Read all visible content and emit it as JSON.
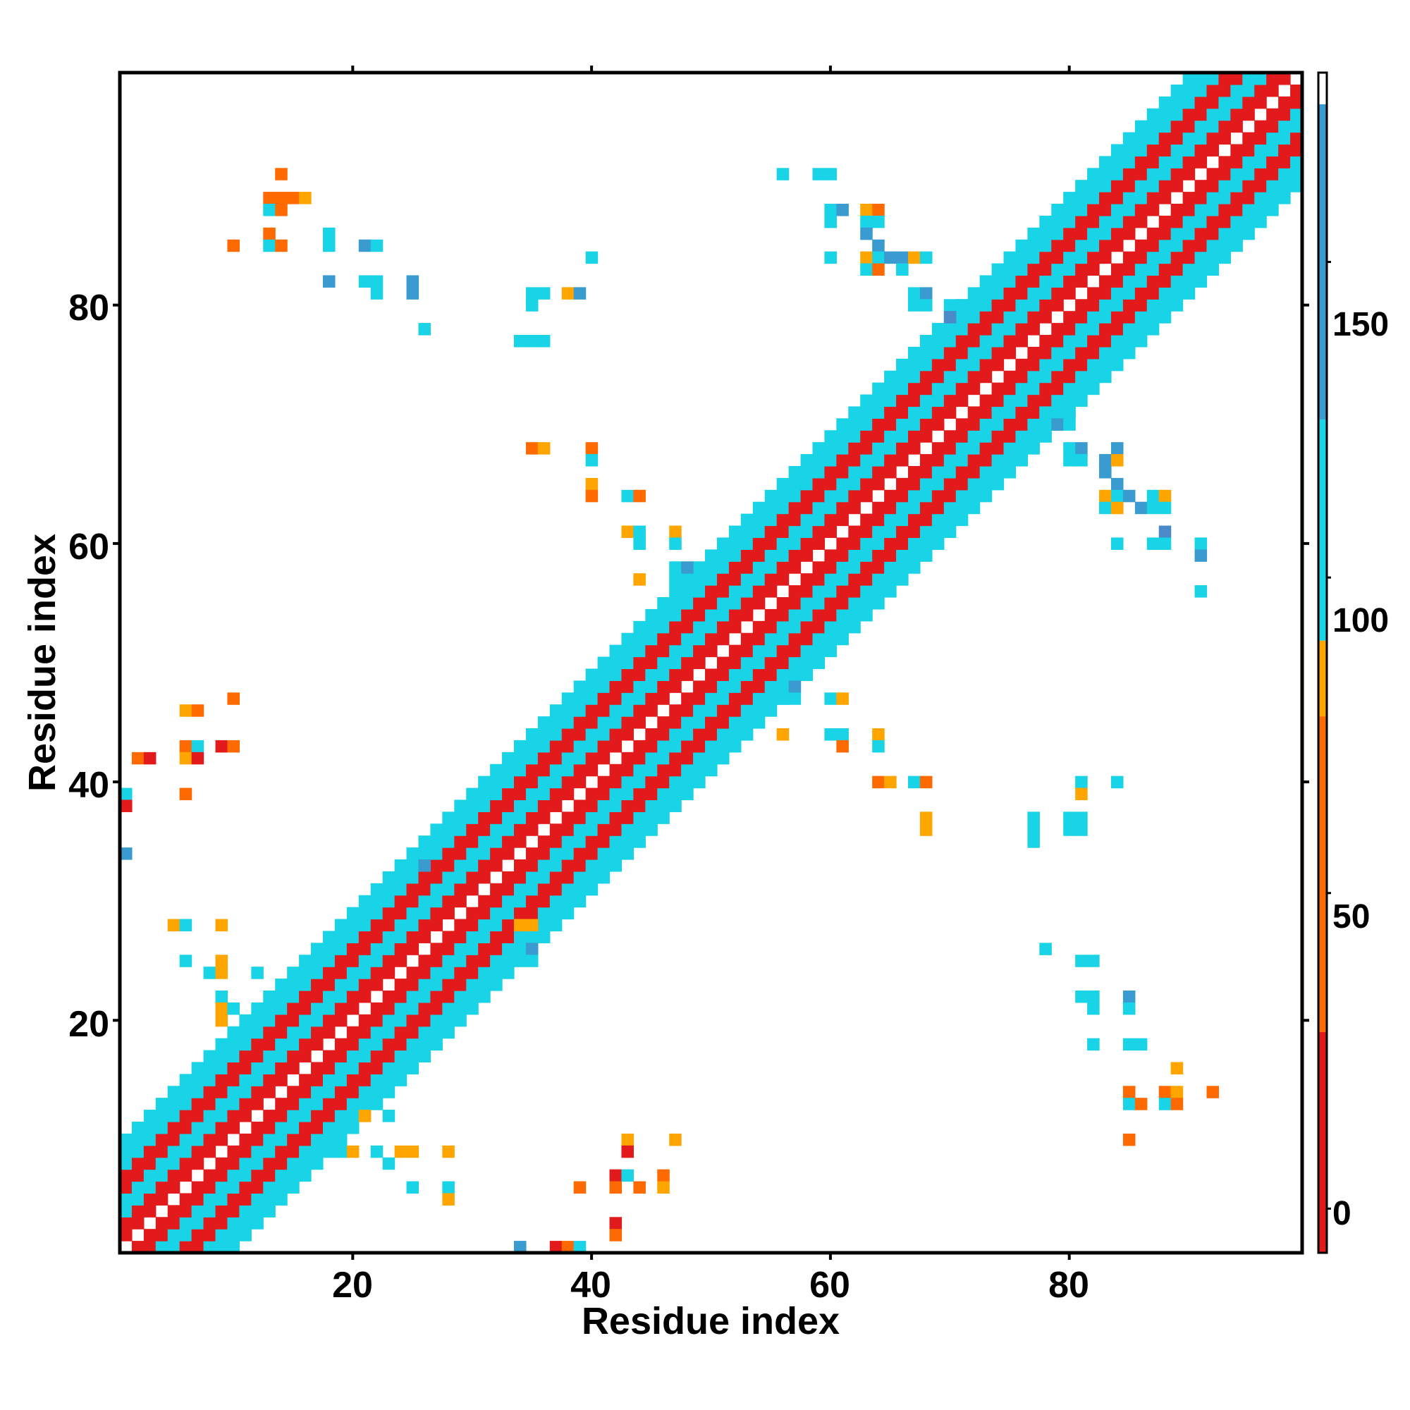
{
  "chart_data": {
    "type": "heatmap",
    "title": "",
    "xlabel": "Residue index",
    "ylabel": "Residue index",
    "xlim": [
      0.5,
      99.5
    ],
    "ylim": [
      0.5,
      99.5
    ],
    "x_ticks": [
      20,
      40,
      60,
      80
    ],
    "y_ticks": [
      20,
      40,
      60,
      80
    ],
    "x_tick_labels": [
      "20",
      "40",
      "60",
      "80"
    ],
    "y_tick_labels": [
      "20",
      "40",
      "60",
      "80"
    ],
    "colorbar": {
      "range": [
        -7,
        180
      ],
      "ticks": [
        0,
        50,
        100,
        150
      ],
      "tick_labels": [
        "0",
        "50",
        "100",
        "150"
      ],
      "bands": [
        {
          "from": -7,
          "to": 28,
          "color": "#e31a1c",
          "meaning": "red"
        },
        {
          "from": 28,
          "to": 78,
          "color": "#ff6a00",
          "meaning": "orange"
        },
        {
          "from": 78,
          "to": 90,
          "color": "#ffa500",
          "meaning": "amber"
        },
        {
          "from": 90,
          "to": 125,
          "color": "#19d3e6",
          "meaning": "cyan"
        },
        {
          "from": 125,
          "to": 175,
          "color": "#3a9bd0",
          "meaning": "blue"
        },
        {
          "from": 175,
          "to": 180,
          "color": "#ffffff",
          "meaning": "white"
        }
      ]
    },
    "colors": {
      "red": "#e31a1c",
      "orange": "#ff6a00",
      "amber": "#ffa500",
      "cyan": "#19d3e6",
      "blue": "#3a9bd0",
      "steel": "#4a8ac8"
    },
    "diagonal_band": {
      "residue_range": [
        1,
        99
      ],
      "halfwidth": 9,
      "pattern_cycle": [
        "cyan",
        "orange",
        "red",
        "orange"
      ]
    },
    "contacts": [
      {
        "x": 14,
        "y": 91,
        "c": "orange"
      },
      {
        "x": 13,
        "y": 89,
        "c": "orange"
      },
      {
        "x": 14,
        "y": 89,
        "c": "orange"
      },
      {
        "x": 15,
        "y": 89,
        "c": "orange"
      },
      {
        "x": 16,
        "y": 89,
        "c": "amber"
      },
      {
        "x": 13,
        "y": 88,
        "c": "cyan"
      },
      {
        "x": 14,
        "y": 88,
        "c": "orange"
      },
      {
        "x": 10,
        "y": 85,
        "c": "orange"
      },
      {
        "x": 13,
        "y": 86,
        "c": "orange"
      },
      {
        "x": 13,
        "y": 85,
        "c": "cyan"
      },
      {
        "x": 14,
        "y": 85,
        "c": "orange"
      },
      {
        "x": 18,
        "y": 86,
        "c": "cyan"
      },
      {
        "x": 18,
        "y": 85,
        "c": "cyan"
      },
      {
        "x": 21,
        "y": 85,
        "c": "blue"
      },
      {
        "x": 22,
        "y": 85,
        "c": "cyan"
      },
      {
        "x": 18,
        "y": 82,
        "c": "blue"
      },
      {
        "x": 21,
        "y": 82,
        "c": "cyan"
      },
      {
        "x": 22,
        "y": 82,
        "c": "cyan"
      },
      {
        "x": 22,
        "y": 81,
        "c": "cyan"
      },
      {
        "x": 25,
        "y": 82,
        "c": "blue"
      },
      {
        "x": 25,
        "y": 81,
        "c": "blue"
      },
      {
        "x": 26,
        "y": 78,
        "c": "cyan"
      },
      {
        "x": 35,
        "y": 81,
        "c": "cyan"
      },
      {
        "x": 36,
        "y": 81,
        "c": "cyan"
      },
      {
        "x": 35,
        "y": 80,
        "c": "cyan"
      },
      {
        "x": 38,
        "y": 81,
        "c": "amber"
      },
      {
        "x": 39,
        "y": 81,
        "c": "blue"
      },
      {
        "x": 40,
        "y": 84,
        "c": "cyan"
      },
      {
        "x": 34,
        "y": 77,
        "c": "cyan"
      },
      {
        "x": 35,
        "y": 77,
        "c": "cyan"
      },
      {
        "x": 36,
        "y": 77,
        "c": "cyan"
      },
      {
        "x": 35,
        "y": 68,
        "c": "orange"
      },
      {
        "x": 36,
        "y": 68,
        "c": "amber"
      },
      {
        "x": 40,
        "y": 68,
        "c": "orange"
      },
      {
        "x": 40,
        "y": 67,
        "c": "cyan"
      },
      {
        "x": 40,
        "y": 65,
        "c": "amber"
      },
      {
        "x": 40,
        "y": 64,
        "c": "orange"
      },
      {
        "x": 43,
        "y": 64,
        "c": "cyan"
      },
      {
        "x": 44,
        "y": 64,
        "c": "orange"
      },
      {
        "x": 43,
        "y": 61,
        "c": "amber"
      },
      {
        "x": 44,
        "y": 61,
        "c": "cyan"
      },
      {
        "x": 44,
        "y": 60,
        "c": "cyan"
      },
      {
        "x": 47,
        "y": 61,
        "c": "amber"
      },
      {
        "x": 47,
        "y": 60,
        "c": "cyan"
      },
      {
        "x": 44,
        "y": 57,
        "c": "amber"
      },
      {
        "x": 47,
        "y": 58,
        "c": "cyan"
      },
      {
        "x": 47,
        "y": 57,
        "c": "cyan"
      },
      {
        "x": 48,
        "y": 58,
        "c": "blue"
      },
      {
        "x": 56,
        "y": 91,
        "c": "cyan"
      },
      {
        "x": 59,
        "y": 91,
        "c": "cyan"
      },
      {
        "x": 60,
        "y": 91,
        "c": "cyan"
      },
      {
        "x": 60,
        "y": 88,
        "c": "cyan"
      },
      {
        "x": 61,
        "y": 88,
        "c": "blue"
      },
      {
        "x": 60,
        "y": 87,
        "c": "cyan"
      },
      {
        "x": 63,
        "y": 88,
        "c": "amber"
      },
      {
        "x": 64,
        "y": 88,
        "c": "orange"
      },
      {
        "x": 63,
        "y": 87,
        "c": "cyan"
      },
      {
        "x": 64,
        "y": 87,
        "c": "cyan"
      },
      {
        "x": 63,
        "y": 86,
        "c": "blue"
      },
      {
        "x": 64,
        "y": 85,
        "c": "blue"
      },
      {
        "x": 60,
        "y": 84,
        "c": "cyan"
      },
      {
        "x": 63,
        "y": 84,
        "c": "amber"
      },
      {
        "x": 64,
        "y": 84,
        "c": "cyan"
      },
      {
        "x": 65,
        "y": 84,
        "c": "blue"
      },
      {
        "x": 66,
        "y": 84,
        "c": "blue"
      },
      {
        "x": 67,
        "y": 84,
        "c": "amber"
      },
      {
        "x": 68,
        "y": 84,
        "c": "cyan"
      },
      {
        "x": 63,
        "y": 83,
        "c": "cyan"
      },
      {
        "x": 64,
        "y": 83,
        "c": "orange"
      },
      {
        "x": 66,
        "y": 83,
        "c": "cyan"
      },
      {
        "x": 67,
        "y": 81,
        "c": "cyan"
      },
      {
        "x": 68,
        "y": 81,
        "c": "blue"
      },
      {
        "x": 67,
        "y": 80,
        "c": "cyan"
      },
      {
        "x": 68,
        "y": 80,
        "c": "cyan"
      },
      {
        "x": 70,
        "y": 80,
        "c": "cyan"
      },
      {
        "x": 71,
        "y": 80,
        "c": "cyan"
      },
      {
        "x": 70,
        "y": 79,
        "c": "steel"
      },
      {
        "x": 78,
        "y": 71,
        "c": "cyan"
      },
      {
        "x": 79,
        "y": 71,
        "c": "cyan"
      },
      {
        "x": 80,
        "y": 71,
        "c": "cyan"
      },
      {
        "x": 79,
        "y": 70,
        "c": "blue"
      },
      {
        "x": 80,
        "y": 70,
        "c": "cyan"
      },
      {
        "x": 80,
        "y": 68,
        "c": "cyan"
      },
      {
        "x": 81,
        "y": 68,
        "c": "blue"
      },
      {
        "x": 80,
        "y": 67,
        "c": "cyan"
      },
      {
        "x": 81,
        "y": 67,
        "c": "cyan"
      },
      {
        "x": 84,
        "y": 68,
        "c": "blue"
      },
      {
        "x": 83,
        "y": 67,
        "c": "blue"
      },
      {
        "x": 84,
        "y": 67,
        "c": "amber"
      },
      {
        "x": 83,
        "y": 66,
        "c": "blue"
      },
      {
        "x": 84,
        "y": 65,
        "c": "blue"
      },
      {
        "x": 83,
        "y": 64,
        "c": "amber"
      },
      {
        "x": 84,
        "y": 64,
        "c": "cyan"
      },
      {
        "x": 85,
        "y": 64,
        "c": "blue"
      },
      {
        "x": 83,
        "y": 63,
        "c": "cyan"
      },
      {
        "x": 84,
        "y": 63,
        "c": "amber"
      },
      {
        "x": 86,
        "y": 63,
        "c": "blue"
      },
      {
        "x": 87,
        "y": 64,
        "c": "cyan"
      },
      {
        "x": 88,
        "y": 64,
        "c": "amber"
      },
      {
        "x": 87,
        "y": 63,
        "c": "cyan"
      },
      {
        "x": 88,
        "y": 63,
        "c": "cyan"
      },
      {
        "x": 88,
        "y": 61,
        "c": "steel"
      },
      {
        "x": 84,
        "y": 60,
        "c": "cyan"
      },
      {
        "x": 87,
        "y": 60,
        "c": "cyan"
      },
      {
        "x": 88,
        "y": 60,
        "c": "cyan"
      },
      {
        "x": 91,
        "y": 60,
        "c": "cyan"
      },
      {
        "x": 91,
        "y": 59,
        "c": "blue"
      },
      {
        "x": 91,
        "y": 56,
        "c": "cyan"
      },
      {
        "x": 1,
        "y": 39,
        "c": "cyan"
      },
      {
        "x": 1,
        "y": 38,
        "c": "red"
      },
      {
        "x": 1,
        "y": 34,
        "c": "blue"
      },
      {
        "x": 2,
        "y": 42,
        "c": "orange"
      },
      {
        "x": 3,
        "y": 42,
        "c": "red"
      },
      {
        "x": 6,
        "y": 46,
        "c": "amber"
      },
      {
        "x": 7,
        "y": 46,
        "c": "orange"
      },
      {
        "x": 10,
        "y": 47,
        "c": "orange"
      },
      {
        "x": 6,
        "y": 43,
        "c": "orange"
      },
      {
        "x": 7,
        "y": 43,
        "c": "cyan"
      },
      {
        "x": 9,
        "y": 43,
        "c": "red"
      },
      {
        "x": 10,
        "y": 43,
        "c": "orange"
      },
      {
        "x": 6,
        "y": 42,
        "c": "amber"
      },
      {
        "x": 7,
        "y": 42,
        "c": "red"
      },
      {
        "x": 6,
        "y": 39,
        "c": "orange"
      },
      {
        "x": 5,
        "y": 28,
        "c": "amber"
      },
      {
        "x": 6,
        "y": 28,
        "c": "cyan"
      },
      {
        "x": 9,
        "y": 28,
        "c": "amber"
      },
      {
        "x": 6,
        "y": 25,
        "c": "cyan"
      },
      {
        "x": 8,
        "y": 24,
        "c": "cyan"
      },
      {
        "x": 9,
        "y": 25,
        "c": "amber"
      },
      {
        "x": 9,
        "y": 24,
        "c": "amber"
      },
      {
        "x": 12,
        "y": 24,
        "c": "cyan"
      },
      {
        "x": 9,
        "y": 22,
        "c": "cyan"
      },
      {
        "x": 9,
        "y": 21,
        "c": "amber"
      },
      {
        "x": 10,
        "y": 21,
        "c": "cyan"
      },
      {
        "x": 9,
        "y": 20,
        "c": "amber"
      },
      {
        "x": 25,
        "y": 33,
        "c": "cyan"
      },
      {
        "x": 26,
        "y": 33,
        "c": "blue"
      },
      {
        "x": 34,
        "y": 28,
        "c": "amber"
      },
      {
        "x": 35,
        "y": 28,
        "c": "amber"
      },
      {
        "x": 35,
        "y": 26,
        "c": "blue"
      },
      {
        "x": 35,
        "y": 25,
        "c": "cyan"
      },
      {
        "x": 20,
        "y": 12,
        "c": "cyan"
      },
      {
        "x": 20,
        "y": 11,
        "c": "cyan"
      },
      {
        "x": 21,
        "y": 12,
        "c": "amber"
      },
      {
        "x": 23,
        "y": 12,
        "c": "cyan"
      },
      {
        "x": 19,
        "y": 9,
        "c": "cyan"
      },
      {
        "x": 20,
        "y": 9,
        "c": "amber"
      },
      {
        "x": 22,
        "y": 9,
        "c": "cyan"
      },
      {
        "x": 24,
        "y": 9,
        "c": "amber"
      },
      {
        "x": 25,
        "y": 9,
        "c": "amber"
      },
      {
        "x": 23,
        "y": 8,
        "c": "cyan"
      },
      {
        "x": 28,
        "y": 9,
        "c": "amber"
      },
      {
        "x": 25,
        "y": 6,
        "c": "cyan"
      },
      {
        "x": 28,
        "y": 6,
        "c": "cyan"
      },
      {
        "x": 28,
        "y": 5,
        "c": "amber"
      },
      {
        "x": 34,
        "y": 1,
        "c": "blue"
      },
      {
        "x": 37,
        "y": 1,
        "c": "red"
      },
      {
        "x": 38,
        "y": 1,
        "c": "orange"
      },
      {
        "x": 39,
        "y": 1,
        "c": "cyan"
      },
      {
        "x": 39,
        "y": 6,
        "c": "orange"
      },
      {
        "x": 42,
        "y": 7,
        "c": "red"
      },
      {
        "x": 42,
        "y": 6,
        "c": "orange"
      },
      {
        "x": 43,
        "y": 7,
        "c": "cyan"
      },
      {
        "x": 44,
        "y": 6,
        "c": "orange"
      },
      {
        "x": 43,
        "y": 10,
        "c": "amber"
      },
      {
        "x": 43,
        "y": 9,
        "c": "red"
      },
      {
        "x": 46,
        "y": 7,
        "c": "orange"
      },
      {
        "x": 46,
        "y": 6,
        "c": "amber"
      },
      {
        "x": 47,
        "y": 10,
        "c": "amber"
      },
      {
        "x": 42,
        "y": 3,
        "c": "red"
      },
      {
        "x": 42,
        "y": 2,
        "c": "orange"
      },
      {
        "x": 56,
        "y": 48,
        "c": "cyan"
      },
      {
        "x": 57,
        "y": 48,
        "c": "blue"
      },
      {
        "x": 56,
        "y": 47,
        "c": "cyan"
      },
      {
        "x": 57,
        "y": 47,
        "c": "cyan"
      },
      {
        "x": 60,
        "y": 47,
        "c": "cyan"
      },
      {
        "x": 61,
        "y": 47,
        "c": "amber"
      },
      {
        "x": 56,
        "y": 44,
        "c": "amber"
      },
      {
        "x": 60,
        "y": 44,
        "c": "cyan"
      },
      {
        "x": 61,
        "y": 44,
        "c": "cyan"
      },
      {
        "x": 61,
        "y": 43,
        "c": "orange"
      },
      {
        "x": 64,
        "y": 44,
        "c": "amber"
      },
      {
        "x": 64,
        "y": 43,
        "c": "cyan"
      },
      {
        "x": 64,
        "y": 40,
        "c": "orange"
      },
      {
        "x": 65,
        "y": 40,
        "c": "amber"
      },
      {
        "x": 67,
        "y": 40,
        "c": "cyan"
      },
      {
        "x": 68,
        "y": 40,
        "c": "orange"
      },
      {
        "x": 68,
        "y": 37,
        "c": "amber"
      },
      {
        "x": 68,
        "y": 36,
        "c": "amber"
      },
      {
        "x": 77,
        "y": 37,
        "c": "cyan"
      },
      {
        "x": 77,
        "y": 36,
        "c": "cyan"
      },
      {
        "x": 77,
        "y": 35,
        "c": "cyan"
      },
      {
        "x": 80,
        "y": 37,
        "c": "cyan"
      },
      {
        "x": 81,
        "y": 37,
        "c": "cyan"
      },
      {
        "x": 80,
        "y": 36,
        "c": "cyan"
      },
      {
        "x": 81,
        "y": 36,
        "c": "cyan"
      },
      {
        "x": 81,
        "y": 40,
        "c": "cyan"
      },
      {
        "x": 81,
        "y": 39,
        "c": "amber"
      },
      {
        "x": 84,
        "y": 40,
        "c": "cyan"
      },
      {
        "x": 78,
        "y": 26,
        "c": "cyan"
      },
      {
        "x": 81,
        "y": 25,
        "c": "cyan"
      },
      {
        "x": 82,
        "y": 25,
        "c": "cyan"
      },
      {
        "x": 81,
        "y": 22,
        "c": "cyan"
      },
      {
        "x": 82,
        "y": 22,
        "c": "cyan"
      },
      {
        "x": 82,
        "y": 21,
        "c": "cyan"
      },
      {
        "x": 85,
        "y": 22,
        "c": "blue"
      },
      {
        "x": 85,
        "y": 21,
        "c": "cyan"
      },
      {
        "x": 82,
        "y": 18,
        "c": "cyan"
      },
      {
        "x": 85,
        "y": 18,
        "c": "cyan"
      },
      {
        "x": 86,
        "y": 18,
        "c": "cyan"
      },
      {
        "x": 89,
        "y": 16,
        "c": "amber"
      },
      {
        "x": 85,
        "y": 14,
        "c": "orange"
      },
      {
        "x": 88,
        "y": 14,
        "c": "orange"
      },
      {
        "x": 89,
        "y": 14,
        "c": "amber"
      },
      {
        "x": 92,
        "y": 14,
        "c": "orange"
      },
      {
        "x": 85,
        "y": 13,
        "c": "cyan"
      },
      {
        "x": 86,
        "y": 13,
        "c": "orange"
      },
      {
        "x": 88,
        "y": 13,
        "c": "cyan"
      },
      {
        "x": 89,
        "y": 13,
        "c": "orange"
      },
      {
        "x": 85,
        "y": 10,
        "c": "orange"
      }
    ]
  }
}
